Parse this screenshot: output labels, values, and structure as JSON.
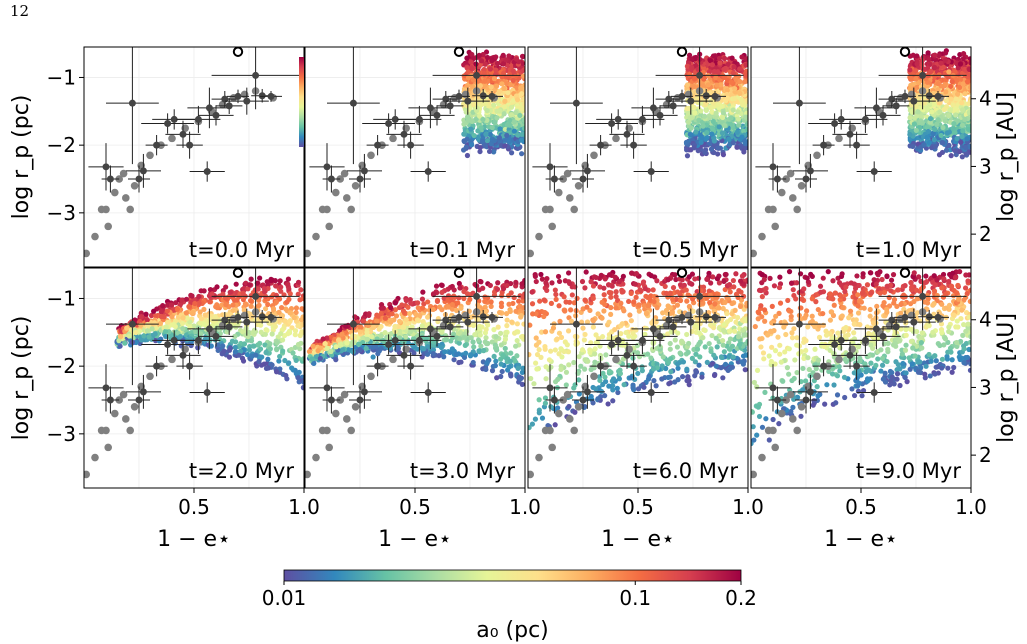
{
  "page_number": "12",
  "colorbar": {
    "label": "a₀ (pc)",
    "tick_labels": [
      "0.01",
      "0.1",
      "0.2"
    ],
    "tick_values": [
      0.01,
      0.1,
      0.2
    ],
    "range": [
      0.01,
      0.2
    ],
    "scale": "log",
    "colormap_stops": [
      "#5e4fa2",
      "#3288bd",
      "#66c2a5",
      "#abdda4",
      "#e6f598",
      "#fee08b",
      "#fdae61",
      "#f46d43",
      "#d53e4f",
      "#9e0142"
    ]
  },
  "chart_data": {
    "type": "scatter",
    "layout_grid": {
      "rows": 2,
      "cols": 4
    },
    "xlabel": "1 − e⋆",
    "ylabel_left": "log r_p (pc)",
    "ylabel_right": "log r_p [AU]",
    "xlim": [
      0.0,
      1.0
    ],
    "ylim": [
      -3.8,
      -0.55
    ],
    "xticks": [
      0.5,
      1.0
    ],
    "xtick_labels": [
      "0.5",
      "1.0"
    ],
    "yticks": [
      -1,
      -2,
      -3
    ],
    "ytick_labels": [
      "−1",
      "−2",
      "−3"
    ],
    "yticks_right_au": [
      2,
      3,
      4
    ],
    "ytick_right_labels": [
      "2",
      "3",
      "4"
    ],
    "grid": true,
    "observed_points": [
      {
        "x": 0.22,
        "y": -1.38,
        "xerr": 0.12,
        "yerr": 0.9
      },
      {
        "x": 0.1,
        "y": -2.32,
        "xerr": 0.08,
        "yerr": 0.35
      },
      {
        "x": 0.27,
        "y": -2.38,
        "xerr": 0.08,
        "yerr": 0.25
      },
      {
        "x": 0.38,
        "y": -1.68,
        "xerr": 0.12,
        "yerr": 0.15
      },
      {
        "x": 0.41,
        "y": -1.62,
        "xerr": 0.1,
        "yerr": 0.15
      },
      {
        "x": 0.45,
        "y": -1.84,
        "xerr": 0.08,
        "yerr": 0.2
      },
      {
        "x": 0.48,
        "y": -2.0,
        "xerr": 0.06,
        "yerr": 0.2
      },
      {
        "x": 0.52,
        "y": -1.62,
        "xerr": 0.1,
        "yerr": 0.2
      },
      {
        "x": 0.57,
        "y": -1.45,
        "xerr": 0.1,
        "yerr": 0.3
      },
      {
        "x": 0.6,
        "y": -1.56,
        "xerr": 0.08,
        "yerr": 0.15
      },
      {
        "x": 0.64,
        "y": -1.32,
        "xerr": 0.06,
        "yerr": 0.12
      },
      {
        "x": 0.66,
        "y": -1.42,
        "xerr": 0.06,
        "yerr": 0.12
      },
      {
        "x": 0.7,
        "y": -1.28,
        "xerr": 0.05,
        "yerr": 0.1
      },
      {
        "x": 0.74,
        "y": -1.35,
        "xerr": 0.1,
        "yerr": 0.2
      },
      {
        "x": 0.78,
        "y": -0.97,
        "xerr": 0.2,
        "yerr": 0.5
      },
      {
        "x": 0.81,
        "y": -1.27,
        "xerr": 0.05,
        "yerr": 0.1
      },
      {
        "x": 0.85,
        "y": -1.28,
        "xerr": 0.05,
        "yerr": 0.08
      },
      {
        "x": 0.56,
        "y": -2.39,
        "xerr": 0.08,
        "yerr": 0.15
      },
      {
        "x": 0.33,
        "y": -2.0,
        "xerr": 0.05,
        "yerr": 0.15
      },
      {
        "x": 0.25,
        "y": -2.5,
        "xerr": 0.05,
        "yerr": 0.2
      },
      {
        "x": 0.12,
        "y": -2.5,
        "xerr": 0.04,
        "yerr": 0.2
      }
    ],
    "grey_points": [
      {
        "x": 0.01,
        "y": -3.6
      },
      {
        "x": 0.05,
        "y": -3.35
      },
      {
        "x": 0.08,
        "y": -2.95
      },
      {
        "x": 0.11,
        "y": -3.2
      },
      {
        "x": 0.1,
        "y": -2.95
      },
      {
        "x": 0.14,
        "y": -2.7
      },
      {
        "x": 0.16,
        "y": -2.5
      },
      {
        "x": 0.18,
        "y": -2.42
      },
      {
        "x": 0.19,
        "y": -2.78
      },
      {
        "x": 0.21,
        "y": -2.95
      },
      {
        "x": 0.23,
        "y": -2.6
      },
      {
        "x": 0.26,
        "y": -2.3
      },
      {
        "x": 0.3,
        "y": -2.15
      },
      {
        "x": 0.35,
        "y": -2.0
      },
      {
        "x": 0.4,
        "y": -1.9
      },
      {
        "x": 0.46,
        "y": -1.75
      },
      {
        "x": 0.52,
        "y": -1.65
      },
      {
        "x": 0.58,
        "y": -1.5
      },
      {
        "x": 0.63,
        "y": -1.4
      },
      {
        "x": 0.68,
        "y": -1.3
      },
      {
        "x": 0.73,
        "y": -1.25
      },
      {
        "x": 0.78,
        "y": -1.2
      },
      {
        "x": 0.86,
        "y": -1.3
      }
    ],
    "reference_point": {
      "x": 0.7,
      "y": -0.62
    },
    "panels": [
      {
        "label": "t=0.0 Myr",
        "time_myr": 0.0
      },
      {
        "label": "t=0.1 Myr",
        "time_myr": 0.1
      },
      {
        "label": "t=0.5 Myr",
        "time_myr": 0.5
      },
      {
        "label": "t=1.0 Myr",
        "time_myr": 1.0
      },
      {
        "label": "t=2.0 Myr",
        "time_myr": 2.0
      },
      {
        "label": "t=3.0 Myr",
        "time_myr": 3.0
      },
      {
        "label": "t=6.0 Myr",
        "time_myr": 6.0
      },
      {
        "label": "t=9.0 Myr",
        "time_myr": 9.0
      }
    ]
  }
}
